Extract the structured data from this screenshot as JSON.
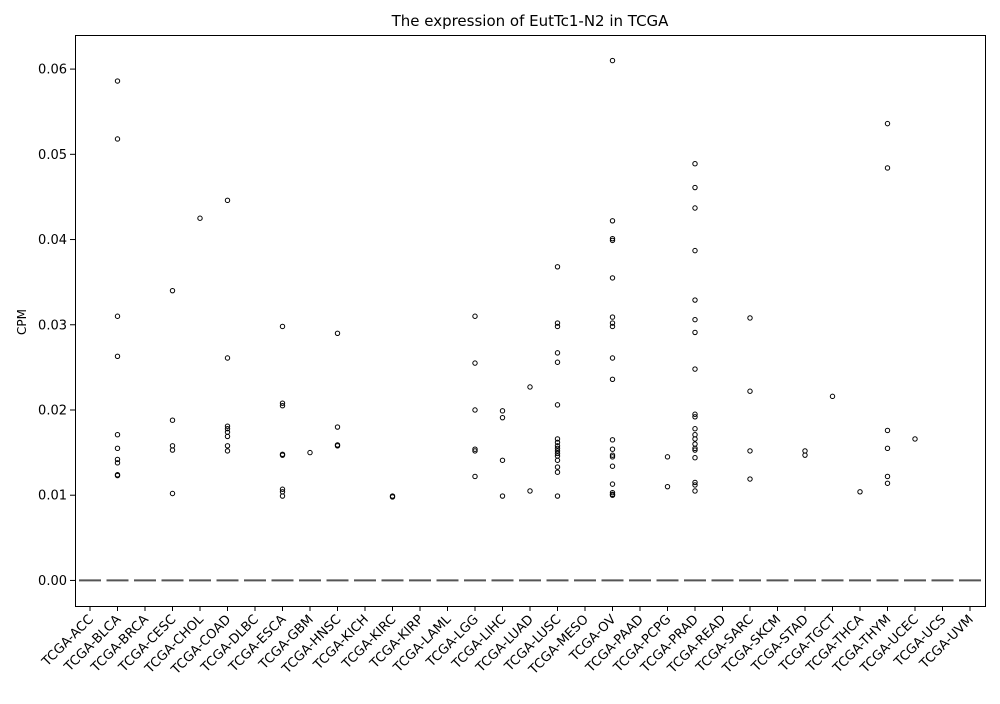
{
  "chart_data": {
    "type": "boxplot",
    "title": "The expression of EutTc1-N2 in TCGA",
    "xlabel": "",
    "ylabel": "CPM",
    "ylim": [
      -0.003,
      0.064
    ],
    "yticks": [
      0.0,
      0.01,
      0.02,
      0.03,
      0.04,
      0.05,
      0.06
    ],
    "ytick_labels": [
      "0.00",
      "0.01",
      "0.02",
      "0.03",
      "0.04",
      "0.05",
      "0.06"
    ],
    "grid": false,
    "box_color": "#555555",
    "outlier_edge_color": "#000000",
    "categories": [
      "TCGA-ACC",
      "TCGA-BLCA",
      "TCGA-BRCA",
      "TCGA-CESC",
      "TCGA-CHOL",
      "TCGA-COAD",
      "TCGA-DLBC",
      "TCGA-ESCA",
      "TCGA-GBM",
      "TCGA-HNSC",
      "TCGA-KICH",
      "TCGA-KIRC",
      "TCGA-KIRP",
      "TCGA-LAML",
      "TCGA-LGG",
      "TCGA-LIHC",
      "TCGA-LUAD",
      "TCGA-LUSC",
      "TCGA-MESO",
      "TCGA-OV",
      "TCGA-PAAD",
      "TCGA-PCPG",
      "TCGA-PRAD",
      "TCGA-READ",
      "TCGA-SARC",
      "TCGA-SKCM",
      "TCGA-STAD",
      "TCGA-TGCT",
      "TCGA-THCA",
      "TCGA-THYM",
      "TCGA-UCEC",
      "TCGA-UCS",
      "TCGA-UVM"
    ],
    "medians": [
      0,
      0,
      0,
      0,
      0,
      0,
      0,
      0,
      0,
      0,
      0,
      0,
      0,
      0,
      0,
      0,
      0,
      0,
      0,
      0,
      0,
      0,
      0,
      0,
      0,
      0,
      0,
      0,
      0,
      0,
      0,
      0,
      0
    ],
    "outliers": [
      [],
      [
        0.0586,
        0.0518,
        0.031,
        0.0263,
        0.0171,
        0.0155,
        0.0142,
        0.0138,
        0.0124,
        0.0123
      ],
      [],
      [
        0.034,
        0.0188,
        0.0158,
        0.0153,
        0.0102
      ],
      [
        0.0425
      ],
      [
        0.0446,
        0.0261,
        0.0181,
        0.0178,
        0.0174,
        0.0169,
        0.0158,
        0.0152
      ],
      [],
      [
        0.0298,
        0.0208,
        0.0205,
        0.0148,
        0.0147,
        0.0107,
        0.0104,
        0.0099
      ],
      [
        0.015
      ],
      [
        0.029,
        0.018,
        0.0159,
        0.0158
      ],
      [],
      [
        0.0099,
        0.0098
      ],
      [],
      [],
      [
        0.031,
        0.0255,
        0.02,
        0.0154,
        0.0152,
        0.0122
      ],
      [
        0.0199,
        0.0191,
        0.0141,
        0.0099
      ],
      [
        0.0227,
        0.0105
      ],
      [
        0.0368,
        0.0302,
        0.0298,
        0.0267,
        0.0256,
        0.0206,
        0.0166,
        0.0162,
        0.0158,
        0.0155,
        0.0152,
        0.0149,
        0.0146,
        0.0141,
        0.0133,
        0.0127,
        0.0099
      ],
      [],
      [
        0.061,
        0.0422,
        0.0401,
        0.0399,
        0.0355,
        0.0309,
        0.0302,
        0.0298,
        0.0261,
        0.0236,
        0.0165,
        0.0154,
        0.0147,
        0.0145,
        0.0134,
        0.0113,
        0.0103,
        0.0101,
        0.01
      ],
      [],
      [
        0.0145,
        0.011
      ],
      [
        0.0489,
        0.0461,
        0.0437,
        0.0387,
        0.0329,
        0.0306,
        0.0291,
        0.0248,
        0.0195,
        0.0192,
        0.0178,
        0.0171,
        0.0166,
        0.016,
        0.0155,
        0.0153,
        0.0144,
        0.0115,
        0.0112,
        0.0105
      ],
      [],
      [
        0.0308,
        0.0222,
        0.0152,
        0.0119
      ],
      [],
      [
        0.0152,
        0.0147
      ],
      [
        0.0216
      ],
      [
        0.0104
      ],
      [
        0.0536,
        0.0484,
        0.0176,
        0.0155,
        0.0122,
        0.0114
      ],
      [
        0.0166
      ],
      [],
      []
    ]
  }
}
